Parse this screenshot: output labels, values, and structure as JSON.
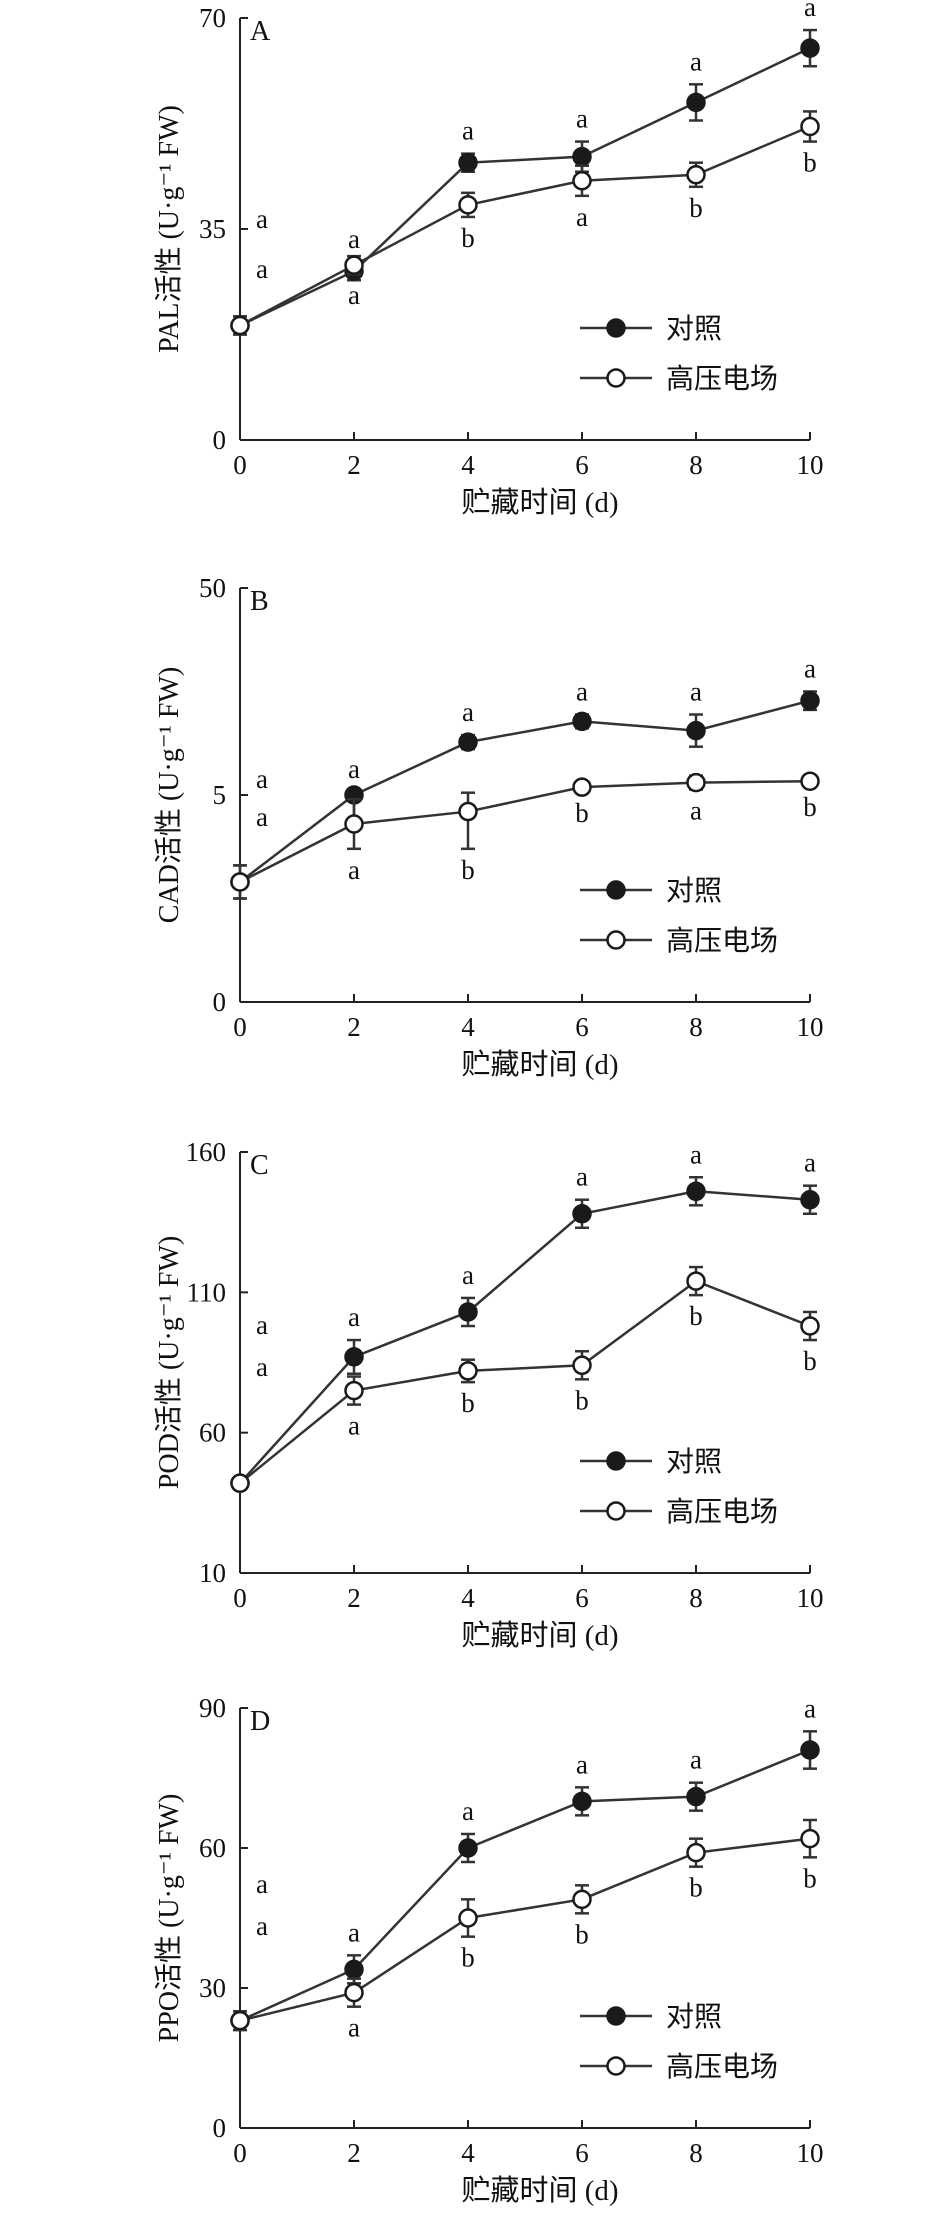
{
  "chart_data": [
    {
      "panel": "A",
      "type": "line",
      "ylabel": "PAL活性 (U·g⁻¹ FW)",
      "xlabel": "贮藏时间 (d)",
      "x": [
        0,
        2,
        4,
        6,
        8,
        10
      ],
      "ylim": [
        0,
        70
      ],
      "yticks": [
        0,
        35,
        70
      ],
      "legend": {
        "position": "bottom-right"
      },
      "series": [
        {
          "name": "对照",
          "marker": "filled",
          "values": [
            19,
            28,
            46,
            47,
            56,
            65
          ],
          "errors": [
            1.5,
            1.5,
            1.5,
            2.5,
            3,
            3
          ]
        },
        {
          "name": "高压电场",
          "marker": "open",
          "values": [
            19,
            29,
            39,
            43,
            44,
            52
          ],
          "errors": [
            1.5,
            1.5,
            2,
            2.5,
            2,
            2.5
          ]
        }
      ],
      "letters": [
        {
          "x": 0,
          "upper": "a",
          "lower": "a"
        },
        {
          "x": 2,
          "upper": "a",
          "lower": "a"
        },
        {
          "x": 4,
          "upper": "a",
          "lower": "b"
        },
        {
          "x": 6,
          "upper": "a",
          "lower": "a"
        },
        {
          "x": 8,
          "upper": "a",
          "lower": "b"
        },
        {
          "x": 10,
          "upper": "a",
          "lower": "b"
        }
      ]
    },
    {
      "panel": "B",
      "type": "line",
      "ylabel": "CAD活性 (U·g⁻¹ FW)",
      "xlabel": "贮藏时间 (d)",
      "x": [
        0,
        2,
        4,
        6,
        8,
        10
      ],
      "ylim": [
        0,
        50
      ],
      "yticks": [
        0,
        5,
        50
      ],
      "tick_positions": [
        0,
        0.5,
        1
      ],
      "legend": {
        "position": "bottom-right"
      },
      "note": "value axis is nonlinear (printed ticks 0, 5, 50); values are read in printed axis units",
      "series": [
        {
          "name": "对照",
          "marker": "filled",
          "values": [
            2.9,
            5.0,
            16.5,
            21.0,
            19.0,
            25.5
          ],
          "errors": [
            0.4,
            0.6,
            1.5,
            1.5,
            3.5,
            2
          ]
        },
        {
          "name": "高压电场",
          "marker": "open",
          "values": [
            2.9,
            4.3,
            4.6,
            6.7,
            7.7,
            8.0
          ],
          "errors": [
            0.4,
            0.6,
            0.9,
            1.0,
            1.5,
            1
          ]
        }
      ],
      "letters": [
        {
          "x": 0,
          "upper": "a",
          "lower": "a"
        },
        {
          "x": 2,
          "upper": "a",
          "lower": "a"
        },
        {
          "x": 4,
          "upper": "a",
          "lower": "b"
        },
        {
          "x": 6,
          "upper": "a",
          "lower": "b"
        },
        {
          "x": 8,
          "upper": "a",
          "lower": "a"
        },
        {
          "x": 10,
          "upper": "a",
          "lower": "b"
        }
      ]
    },
    {
      "panel": "C",
      "type": "line",
      "ylabel": "POD活性 (U·g⁻¹ FW)",
      "xlabel": "贮藏时间 (d)",
      "x": [
        0,
        2,
        4,
        6,
        8,
        10
      ],
      "ylim": [
        10,
        160
      ],
      "yticks": [
        10,
        60,
        110,
        160
      ],
      "legend": {
        "position": "bottom-right"
      },
      "series": [
        {
          "name": "对照",
          "marker": "filled",
          "values": [
            42,
            87,
            103,
            138,
            146,
            143
          ],
          "errors": [
            2,
            6,
            5,
            5,
            5,
            5
          ]
        },
        {
          "name": "高压电场",
          "marker": "open",
          "values": [
            42,
            75,
            82,
            84,
            114,
            98
          ],
          "errors": [
            2,
            5,
            4,
            5,
            5,
            5
          ]
        }
      ],
      "letters": [
        {
          "x": 0,
          "upper": "a",
          "lower": "a"
        },
        {
          "x": 2,
          "upper": "a",
          "lower": "a"
        },
        {
          "x": 4,
          "upper": "a",
          "lower": "b"
        },
        {
          "x": 6,
          "upper": "a",
          "lower": "b"
        },
        {
          "x": 8,
          "upper": "a",
          "lower": "b"
        },
        {
          "x": 10,
          "upper": "a",
          "lower": "b"
        }
      ]
    },
    {
      "panel": "D",
      "type": "line",
      "ylabel": "PPO活性 (U·g⁻¹ FW)",
      "xlabel": "贮藏时间 (d)",
      "x": [
        0,
        2,
        4,
        6,
        8,
        10
      ],
      "ylim": [
        0,
        90
      ],
      "yticks": [
        0,
        30,
        60,
        90
      ],
      "legend": {
        "position": "bottom-right"
      },
      "series": [
        {
          "name": "对照",
          "marker": "filled",
          "values": [
            23,
            34,
            60,
            70,
            71,
            81
          ],
          "errors": [
            2,
            3,
            3,
            3,
            3,
            4
          ]
        },
        {
          "name": "高压电场",
          "marker": "open",
          "values": [
            23,
            29,
            45,
            49,
            59,
            62
          ],
          "errors": [
            2,
            3,
            4,
            3,
            3,
            4
          ]
        }
      ],
      "letters": [
        {
          "x": 0,
          "upper": "a",
          "lower": "a"
        },
        {
          "x": 2,
          "upper": "a",
          "lower": "a"
        },
        {
          "x": 4,
          "upper": "a",
          "lower": "b"
        },
        {
          "x": 6,
          "upper": "a",
          "lower": "b"
        },
        {
          "x": 8,
          "upper": "a",
          "lower": "b"
        },
        {
          "x": 10,
          "upper": "a",
          "lower": "b"
        }
      ]
    }
  ]
}
